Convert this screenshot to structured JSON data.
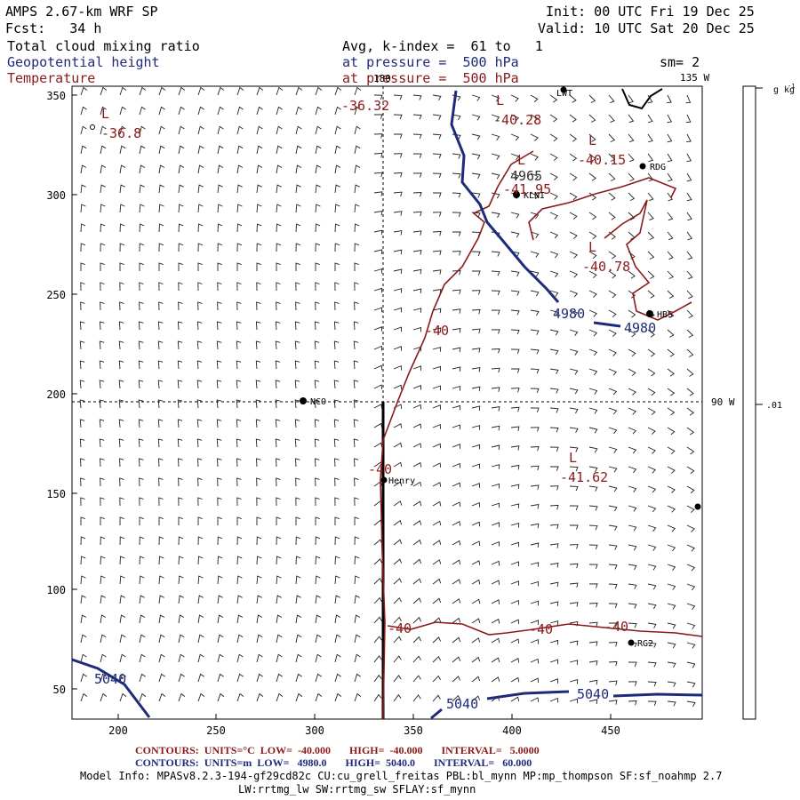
{
  "header": {
    "model": "AMPS 2.67-km WRF SP",
    "forecast": "Fcst:   34 h",
    "init": "Init: 00 UTC Fri 19 Dec 25",
    "valid": "Valid: 10 UTC Sat 20 Dec 25",
    "field1": "Total cloud mixing ratio",
    "field2": "Geopotential height",
    "field3": "Temperature",
    "avg": "Avg, k-index =  61 to   1",
    "press1": "at pressure =  500 hPa",
    "press2": "at pressure =  500 hPa",
    "sm": "sm= 2"
  },
  "axes": {
    "x_ticks": [
      "200",
      "250",
      "300",
      "350",
      "400",
      "450"
    ],
    "y_ticks": [
      "350",
      "300",
      "250",
      "200",
      "150",
      "100",
      "50"
    ]
  },
  "grid_labels": {
    "lon_top": "180",
    "lon_right_top": "135 W",
    "lon_right_mid": "90 W"
  },
  "colorbar": {
    "units": "g kg",
    "units_sup": "-1",
    "tick": ".01"
  },
  "stations": [
    {
      "name": "LWT"
    },
    {
      "name": "RDG"
    },
    {
      "name": "KLNI"
    },
    {
      "name": "HBS"
    },
    {
      "name": "NCO"
    },
    {
      "name": "Henry"
    },
    {
      "name": "RG2"
    }
  ],
  "temp_labels": [
    "-36.32",
    "-36.8",
    "-40.28",
    "-40.15",
    "-41.95",
    "-40.78",
    "-40",
    "-40",
    "-40",
    "-40",
    "-40",
    "-41.62"
  ],
  "height_labels": [
    "4965",
    "4980",
    "4980",
    "5040",
    "5040",
    "5040"
  ],
  "low_marker": "L",
  "footer": {
    "red_line": "CONTOURS:  UNITS=°C  LOW=  -40.000       HIGH=  -40.000       INTERVAL=   5.0000",
    "blue_line": "CONTOURS:  UNITS=m  LOW=   4980.0       HIGH=  5040.0       INTERVAL=   60.000",
    "model_info": "Model Info: MPASv8.2.3-194-gf29cd82c CU:cu_grell_freitas PBL:bl_mynn MP:mp_thompson SF:sf_noahmp 2.7",
    "model_info2": "LW:rrtmg_lw SW:rrtmg_sw SFLAY:sf_mynn"
  },
  "colors": {
    "temp": "#8b1a1a",
    "height": "#1e2a7a",
    "axis": "#000000"
  }
}
